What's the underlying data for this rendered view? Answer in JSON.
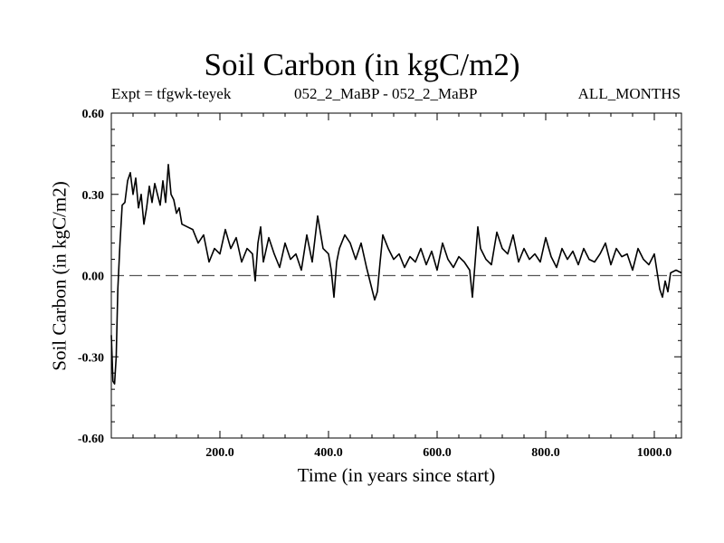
{
  "chart_data": {
    "type": "line",
    "title": "Soil Carbon (in kgC/m2)",
    "subtitle_left": "Expt = tfgwk-teyek",
    "subtitle_center": "052_2_MaBP - 052_2_MaBP",
    "subtitle_right": "ALL_MONTHS",
    "xlabel": "Time (in years since start)",
    "ylabel": "Soil Carbon (in kgC/m2)",
    "xlim": [
      0,
      1050
    ],
    "ylim": [
      -0.6,
      0.6
    ],
    "x_ticks": [
      200,
      400,
      600,
      800,
      1000
    ],
    "x_tick_labels": [
      "200.0",
      "400.0",
      "600.0",
      "800.0",
      "1000.0"
    ],
    "y_ticks": [
      0.6,
      0.3,
      0.0,
      -0.3,
      -0.6
    ],
    "y_tick_labels": [
      "0.60",
      "0.30",
      "0.00",
      "-0.30",
      "-0.60"
    ],
    "reference_line": {
      "y": 0.0,
      "style": "dashed"
    },
    "series": [
      {
        "name": "Soil Carbon",
        "x": [
          0,
          3,
          6,
          9,
          12,
          16,
          20,
          25,
          30,
          35,
          40,
          45,
          50,
          55,
          60,
          65,
          70,
          75,
          80,
          85,
          90,
          95,
          100,
          105,
          110,
          115,
          120,
          125,
          130,
          140,
          150,
          160,
          170,
          180,
          190,
          200,
          210,
          220,
          230,
          240,
          250,
          260,
          265,
          270,
          275,
          280,
          290,
          300,
          310,
          320,
          330,
          340,
          350,
          360,
          370,
          380,
          390,
          400,
          405,
          410,
          415,
          420,
          430,
          440,
          450,
          460,
          470,
          480,
          485,
          490,
          495,
          500,
          510,
          520,
          530,
          540,
          550,
          560,
          570,
          580,
          590,
          600,
          610,
          620,
          630,
          640,
          650,
          660,
          665,
          670,
          675,
          680,
          690,
          700,
          710,
          720,
          730,
          740,
          750,
          760,
          770,
          780,
          790,
          800,
          810,
          820,
          830,
          840,
          850,
          860,
          870,
          880,
          890,
          900,
          910,
          920,
          930,
          940,
          950,
          960,
          970,
          980,
          990,
          1000,
          1010,
          1015,
          1020,
          1025,
          1030,
          1040,
          1050
        ],
        "y": [
          -0.22,
          -0.39,
          -0.4,
          -0.3,
          -0.05,
          0.12,
          0.26,
          0.27,
          0.35,
          0.38,
          0.3,
          0.36,
          0.25,
          0.3,
          0.19,
          0.25,
          0.33,
          0.27,
          0.34,
          0.3,
          0.26,
          0.35,
          0.27,
          0.41,
          0.3,
          0.28,
          0.23,
          0.25,
          0.19,
          0.18,
          0.17,
          0.12,
          0.15,
          0.05,
          0.1,
          0.08,
          0.17,
          0.1,
          0.14,
          0.05,
          0.1,
          0.08,
          -0.02,
          0.12,
          0.18,
          0.05,
          0.14,
          0.08,
          0.03,
          0.12,
          0.06,
          0.08,
          0.02,
          0.15,
          0.05,
          0.22,
          0.1,
          0.08,
          0.02,
          -0.08,
          0.05,
          0.1,
          0.15,
          0.12,
          0.06,
          0.12,
          0.03,
          -0.05,
          -0.09,
          -0.06,
          0.05,
          0.15,
          0.1,
          0.06,
          0.08,
          0.03,
          0.07,
          0.05,
          0.1,
          0.04,
          0.09,
          0.02,
          0.12,
          0.06,
          0.03,
          0.07,
          0.05,
          0.02,
          -0.08,
          0.05,
          0.18,
          0.1,
          0.06,
          0.04,
          0.16,
          0.1,
          0.08,
          0.15,
          0.05,
          0.1,
          0.06,
          0.08,
          0.05,
          0.14,
          0.07,
          0.03,
          0.1,
          0.06,
          0.09,
          0.04,
          0.1,
          0.06,
          0.05,
          0.08,
          0.12,
          0.04,
          0.1,
          0.07,
          0.08,
          0.02,
          0.1,
          0.06,
          0.04,
          0.08,
          -0.05,
          -0.08,
          -0.02,
          -0.06,
          0.01,
          0.02,
          0.01
        ]
      }
    ]
  }
}
